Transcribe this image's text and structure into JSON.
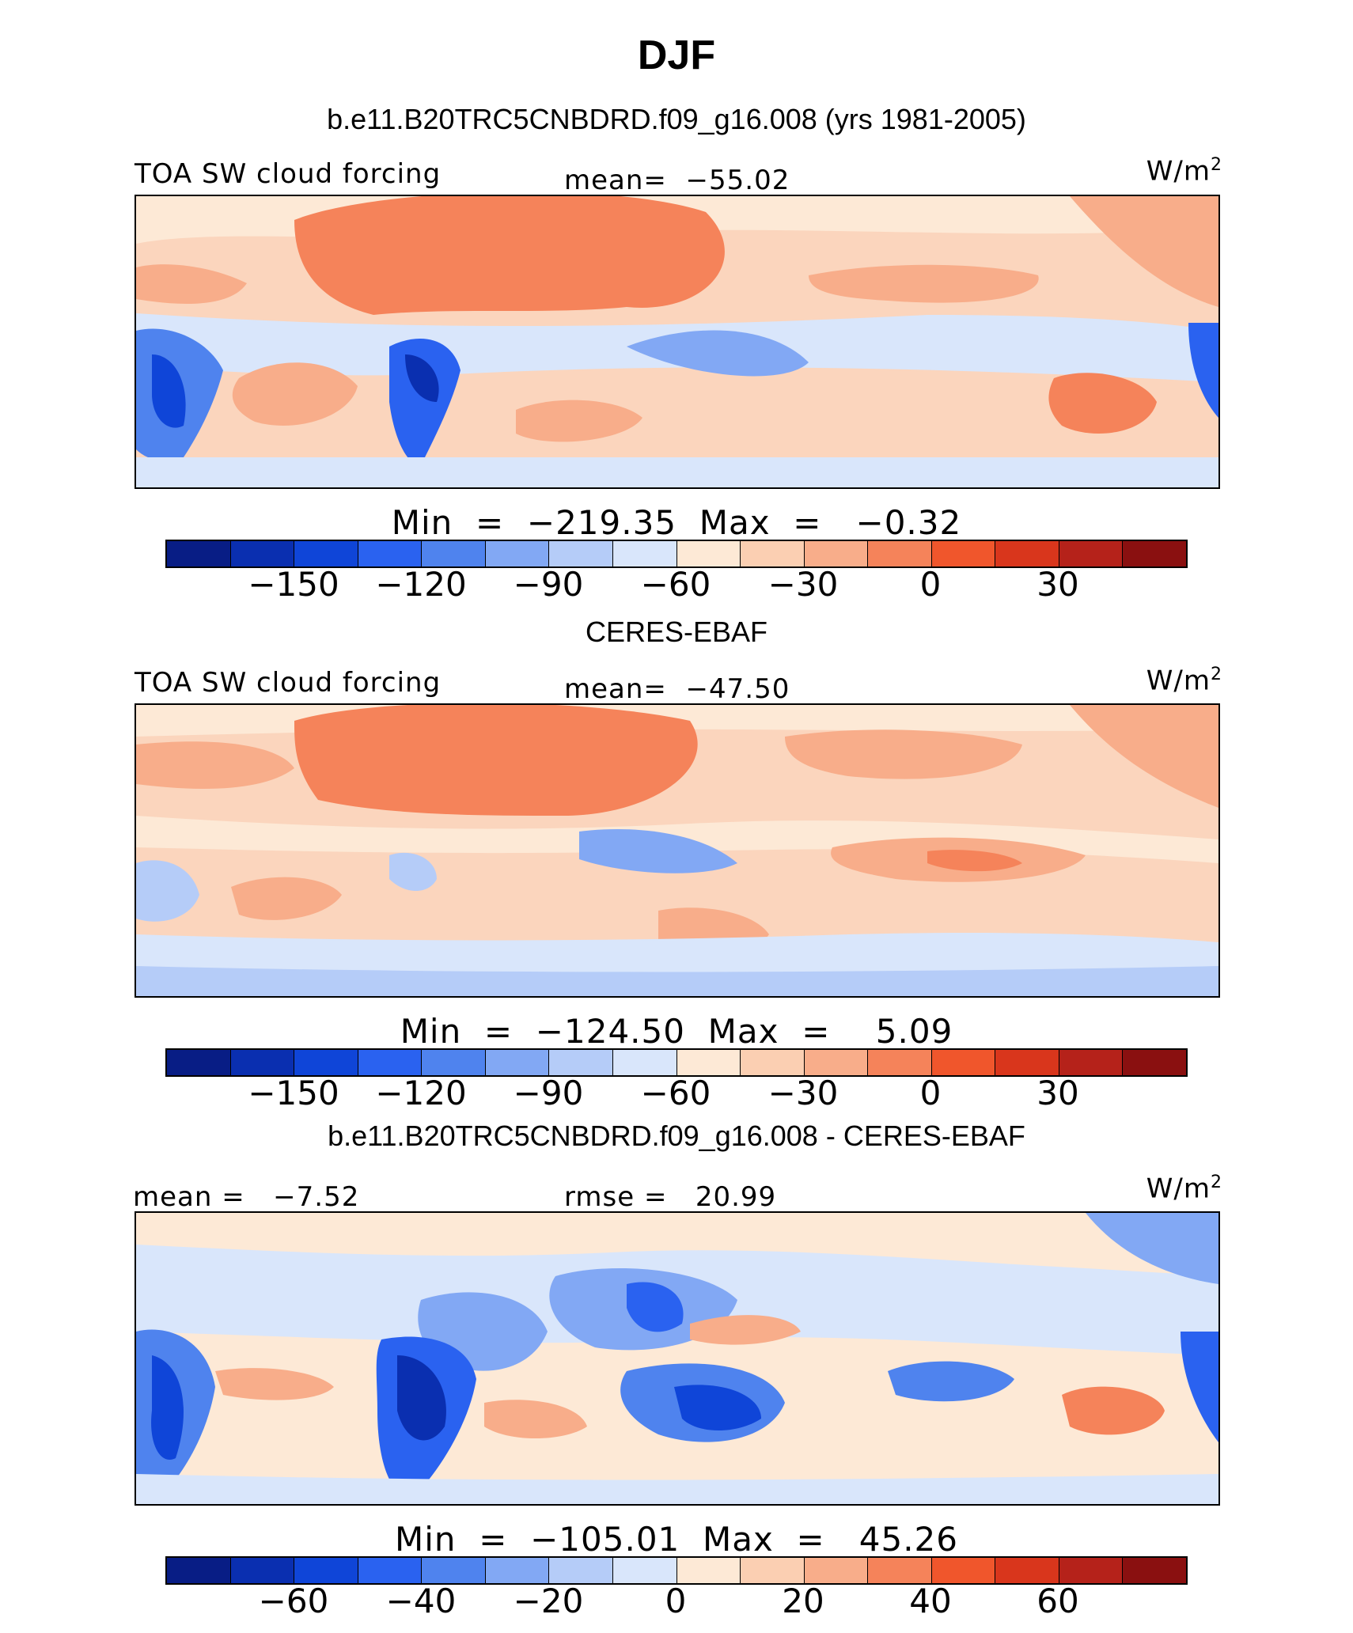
{
  "title": "DJF",
  "panels": [
    {
      "title": "b.e11.B20TRC5CNBDRD.f09_g16.008 (yrs 1981-2005)",
      "left_label": "TOA SW cloud forcing",
      "center_label": "mean=  −55.02",
      "units": "W/m",
      "units_sup": "2",
      "minmax": "Min  =  −219.35  Max  =   −0.32",
      "colorbar_ticks": [
        "−150",
        "−120",
        "−90",
        "−60",
        "−30",
        "0",
        "30"
      ]
    },
    {
      "title": "CERES-EBAF",
      "left_label": "TOA SW cloud forcing",
      "center_label": "mean=  −47.50",
      "units": "W/m",
      "units_sup": "2",
      "minmax": "Min  =  −124.50  Max  =    5.09",
      "colorbar_ticks": [
        "−150",
        "−120",
        "−90",
        "−60",
        "−30",
        "0",
        "30"
      ]
    },
    {
      "title": "b.e11.B20TRC5CNBDRD.f09_g16.008 - CERES-EBAF",
      "left_label": "mean =   −7.52",
      "center_label": "rmse =   20.99",
      "units": "W/m",
      "units_sup": "2",
      "minmax": "Min  =  −105.01  Max  =   45.26",
      "colorbar_ticks": [
        "−60",
        "−40",
        "−20",
        "0",
        "20",
        "40",
        "60"
      ]
    }
  ],
  "colorbar_colors": [
    "#081d85",
    "#0a2fb0",
    "#0f45d8",
    "#2a62f0",
    "#4f83ee",
    "#82a8f4",
    "#b5ccf8",
    "#d9e6fb",
    "#fde9d6",
    "#fbcfb2",
    "#f8ad8a",
    "#f5835a",
    "#f0562c",
    "#d9361c",
    "#b5221a",
    "#8a1010"
  ]
}
